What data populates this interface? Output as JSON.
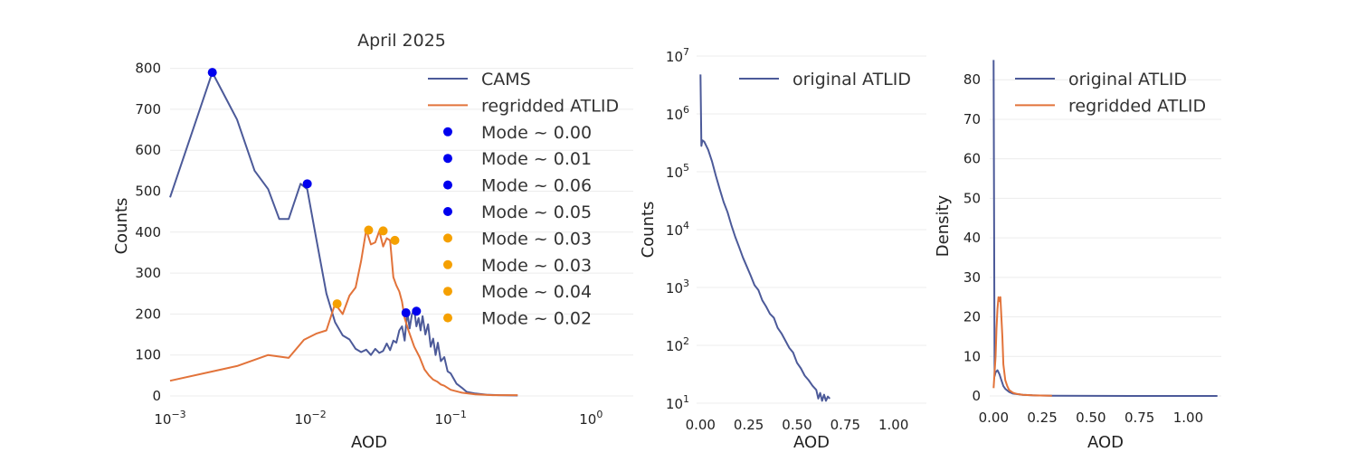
{
  "figure": {
    "title": "April 2025"
  },
  "colors": {
    "cams": "#4c5a99",
    "regridded": "#e2733a",
    "mode_blue": "#0000ee",
    "mode_orange": "#f5a000"
  },
  "chart_data": [
    {
      "id": "left",
      "type": "line",
      "title": "April 2025",
      "xlabel": "AOD",
      "ylabel": "Counts",
      "xscale": "log",
      "xlim": [
        0.001,
        2.0
      ],
      "ylim": [
        0,
        830
      ],
      "x_ticks": [
        0.001,
        0.01,
        0.1,
        1
      ],
      "x_tick_labels": [
        {
          "base": "10",
          "exp": "−3"
        },
        {
          "base": "10",
          "exp": "−2"
        },
        {
          "base": "10",
          "exp": "−1"
        },
        {
          "base": "10",
          "exp": "0"
        }
      ],
      "y_ticks": [
        0,
        100,
        200,
        300,
        400,
        500,
        600,
        700,
        800
      ],
      "y_tick_labels": [
        "0",
        "100",
        "200",
        "300",
        "400",
        "500",
        "600",
        "700",
        "800"
      ],
      "legend_position": "top-right",
      "series": [
        {
          "name": "CAMS",
          "color": "#4c5a99",
          "points": [
            [
              0.001,
              485
            ],
            [
              0.002,
              790
            ],
            [
              0.003,
              675
            ],
            [
              0.004,
              550
            ],
            [
              0.005,
              505
            ],
            [
              0.006,
              432
            ],
            [
              0.007,
              432
            ],
            [
              0.0085,
              518
            ],
            [
              0.0095,
              505
            ],
            [
              0.011,
              385
            ],
            [
              0.013,
              250
            ],
            [
              0.015,
              180
            ],
            [
              0.017,
              148
            ],
            [
              0.019,
              138
            ],
            [
              0.021,
              115
            ],
            [
              0.023,
              107
            ],
            [
              0.025,
              113
            ],
            [
              0.027,
              100
            ],
            [
              0.029,
              115
            ],
            [
              0.031,
              105
            ],
            [
              0.033,
              110
            ],
            [
              0.035,
              128
            ],
            [
              0.037,
              112
            ],
            [
              0.039,
              135
            ],
            [
              0.041,
              130
            ],
            [
              0.043,
              160
            ],
            [
              0.045,
              170
            ],
            [
              0.047,
              135
            ],
            [
              0.049,
              205
            ],
            [
              0.051,
              165
            ],
            [
              0.053,
              200
            ],
            [
              0.055,
              210
            ],
            [
              0.057,
              170
            ],
            [
              0.059,
              190
            ],
            [
              0.061,
              160
            ],
            [
              0.063,
              195
            ],
            [
              0.066,
              150
            ],
            [
              0.069,
              175
            ],
            [
              0.072,
              120
            ],
            [
              0.075,
              140
            ],
            [
              0.078,
              100
            ],
            [
              0.081,
              130
            ],
            [
              0.085,
              85
            ],
            [
              0.09,
              95
            ],
            [
              0.095,
              60
            ],
            [
              0.1,
              55
            ],
            [
              0.11,
              30
            ],
            [
              0.12,
              20
            ],
            [
              0.13,
              10
            ],
            [
              0.15,
              6
            ],
            [
              0.18,
              3
            ],
            [
              0.22,
              2
            ],
            [
              0.3,
              1
            ]
          ]
        },
        {
          "name": "regridded ATLID",
          "color": "#e2733a",
          "points": [
            [
              0.001,
              37
            ],
            [
              0.003,
              73
            ],
            [
              0.005,
              100
            ],
            [
              0.007,
              93
            ],
            [
              0.009,
              137
            ],
            [
              0.011,
              152
            ],
            [
              0.013,
              160
            ],
            [
              0.015,
              225
            ],
            [
              0.017,
              200
            ],
            [
              0.019,
              245
            ],
            [
              0.021,
              265
            ],
            [
              0.023,
              330
            ],
            [
              0.025,
              405
            ],
            [
              0.027,
              370
            ],
            [
              0.029,
              375
            ],
            [
              0.031,
              403
            ],
            [
              0.033,
              365
            ],
            [
              0.035,
              385
            ],
            [
              0.037,
              380
            ],
            [
              0.039,
              290
            ],
            [
              0.041,
              270
            ],
            [
              0.043,
              255
            ],
            [
              0.045,
              230
            ],
            [
              0.047,
              190
            ],
            [
              0.05,
              160
            ],
            [
              0.055,
              120
            ],
            [
              0.06,
              95
            ],
            [
              0.065,
              65
            ],
            [
              0.07,
              50
            ],
            [
              0.075,
              40
            ],
            [
              0.08,
              35
            ],
            [
              0.085,
              28
            ],
            [
              0.09,
              25
            ],
            [
              0.1,
              15
            ],
            [
              0.12,
              8
            ],
            [
              0.15,
              4
            ],
            [
              0.2,
              2
            ],
            [
              0.3,
              2
            ]
          ]
        }
      ],
      "modes": [
        {
          "label": "Mode ~ 0.00",
          "x": 0.002,
          "y": 790,
          "color": "#0000ee"
        },
        {
          "label": "Mode ~ 0.01",
          "x": 0.0095,
          "y": 518,
          "color": "#0000ee"
        },
        {
          "label": "Mode ~ 0.06",
          "x": 0.057,
          "y": 207,
          "color": "#0000ee"
        },
        {
          "label": "Mode ~ 0.05",
          "x": 0.048,
          "y": 203,
          "color": "#0000ee"
        },
        {
          "label": "Mode ~ 0.03",
          "x": 0.026,
          "y": 405,
          "color": "#f5a000"
        },
        {
          "label": "Mode ~ 0.03",
          "x": 0.033,
          "y": 403,
          "color": "#f5a000"
        },
        {
          "label": "Mode ~ 0.04",
          "x": 0.04,
          "y": 380,
          "color": "#f5a000"
        },
        {
          "label": "Mode ~ 0.02",
          "x": 0.0155,
          "y": 225,
          "color": "#f5a000"
        }
      ]
    },
    {
      "id": "middle",
      "type": "line",
      "title": "",
      "xlabel": "AOD",
      "ylabel": "Counts",
      "xscale": "linear",
      "yscale": "log",
      "xlim": [
        -0.02,
        1.17
      ],
      "ylim": [
        10,
        10000000
      ],
      "x_ticks": [
        0,
        0.25,
        0.5,
        0.75,
        1.0
      ],
      "x_tick_labels": [
        "0.00",
        "0.25",
        "0.50",
        "0.75",
        "1.00"
      ],
      "y_ticks": [
        10,
        100,
        1000,
        10000,
        100000,
        1000000,
        10000000
      ],
      "y_tick_labels": [
        {
          "base": "10",
          "exp": "1"
        },
        {
          "base": "10",
          "exp": "2"
        },
        {
          "base": "10",
          "exp": "3"
        },
        {
          "base": "10",
          "exp": "4"
        },
        {
          "base": "10",
          "exp": "5"
        },
        {
          "base": "10",
          "exp": "6"
        },
        {
          "base": "10",
          "exp": "7"
        }
      ],
      "legend_position": "top-right",
      "series": [
        {
          "name": "original ATLID",
          "color": "#4c5a99",
          "points": [
            [
              0.0,
              4800000
            ],
            [
              0.005,
              280000
            ],
            [
              0.01,
              350000
            ],
            [
              0.02,
              330000
            ],
            [
              0.04,
              240000
            ],
            [
              0.06,
              150000
            ],
            [
              0.08,
              85000
            ],
            [
              0.1,
              50000
            ],
            [
              0.12,
              30000
            ],
            [
              0.14,
              20000
            ],
            [
              0.16,
              12000
            ],
            [
              0.18,
              7500
            ],
            [
              0.2,
              5000
            ],
            [
              0.22,
              3300
            ],
            [
              0.24,
              2300
            ],
            [
              0.26,
              1600
            ],
            [
              0.28,
              1100
            ],
            [
              0.3,
              900
            ],
            [
              0.32,
              600
            ],
            [
              0.34,
              470
            ],
            [
              0.36,
              350
            ],
            [
              0.38,
              300
            ],
            [
              0.4,
              200
            ],
            [
              0.42,
              160
            ],
            [
              0.44,
              120
            ],
            [
              0.46,
              90
            ],
            [
              0.48,
              75
            ],
            [
              0.5,
              50
            ],
            [
              0.52,
              40
            ],
            [
              0.54,
              30
            ],
            [
              0.56,
              25
            ],
            [
              0.58,
              20
            ],
            [
              0.6,
              17
            ],
            [
              0.61,
              12
            ],
            [
              0.62,
              15
            ],
            [
              0.63,
              11
            ],
            [
              0.64,
              14
            ],
            [
              0.65,
              11
            ],
            [
              0.66,
              13
            ],
            [
              0.67,
              12
            ]
          ]
        }
      ]
    },
    {
      "id": "right",
      "type": "line",
      "title": "",
      "xlabel": "AOD",
      "ylabel": "Density",
      "xscale": "linear",
      "xlim": [
        -0.02,
        1.17
      ],
      "ylim": [
        0,
        86
      ],
      "x_ticks": [
        0,
        0.25,
        0.5,
        0.75,
        1.0
      ],
      "x_tick_labels": [
        "0.00",
        "0.25",
        "0.50",
        "0.75",
        "1.00"
      ],
      "y_ticks": [
        0,
        10,
        20,
        30,
        40,
        50,
        60,
        70,
        80
      ],
      "y_tick_labels": [
        "0",
        "10",
        "20",
        "30",
        "40",
        "50",
        "60",
        "70",
        "80"
      ],
      "legend_position": "top-right",
      "series": [
        {
          "name": "original ATLID",
          "color": "#4c5a99",
          "points": [
            [
              0.0,
              85
            ],
            [
              0.005,
              5
            ],
            [
              0.01,
              6
            ],
            [
              0.02,
              6.5
            ],
            [
              0.03,
              5.5
            ],
            [
              0.04,
              4
            ],
            [
              0.05,
              2.5
            ],
            [
              0.06,
              1.8
            ],
            [
              0.08,
              1.0
            ],
            [
              0.1,
              0.6
            ],
            [
              0.15,
              0.3
            ],
            [
              0.2,
              0.15
            ],
            [
              0.3,
              0.08
            ],
            [
              0.5,
              0.03
            ],
            [
              0.7,
              0.01
            ],
            [
              1.0,
              0.0
            ],
            [
              1.15,
              0.0
            ]
          ]
        },
        {
          "name": "regridded ATLID",
          "color": "#e2733a",
          "points": [
            [
              0.0,
              2
            ],
            [
              0.01,
              10
            ],
            [
              0.015,
              17
            ],
            [
              0.02,
              22
            ],
            [
              0.025,
              25
            ],
            [
              0.03,
              24
            ],
            [
              0.035,
              25
            ],
            [
              0.04,
              20
            ],
            [
              0.045,
              15
            ],
            [
              0.05,
              8
            ],
            [
              0.06,
              4
            ],
            [
              0.07,
              2.5
            ],
            [
              0.08,
              1.5
            ],
            [
              0.1,
              0.8
            ],
            [
              0.12,
              0.5
            ],
            [
              0.15,
              0.3
            ],
            [
              0.2,
              0.15
            ],
            [
              0.3,
              0.05
            ]
          ]
        }
      ]
    }
  ]
}
